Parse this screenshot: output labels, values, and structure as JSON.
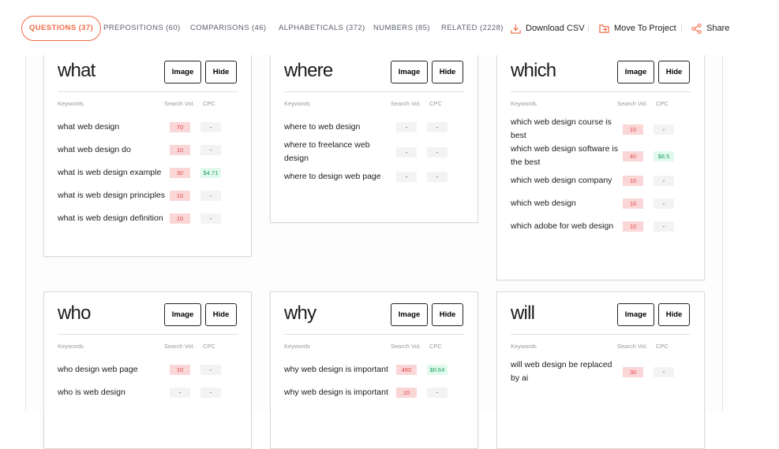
{
  "tabs": [
    {
      "label": "QUESTIONS (37)",
      "active": true
    },
    {
      "label": "PREPOSITIONS (60)"
    },
    {
      "label": "COMPARISONS (46)"
    },
    {
      "label": "ALPHABETICALS (372)"
    },
    {
      "label": "NUMBERS (85)"
    },
    {
      "label": "RELATED (2228)"
    }
  ],
  "actions": {
    "download": "Download CSV",
    "move": "Move To Project",
    "share": "Share"
  },
  "accent": "#f26b45",
  "labels": {
    "image": "Image",
    "hide": "Hide",
    "keywords": "Keywords",
    "search_vol": "Search Vol.",
    "cpc": "CPC"
  },
  "cards": [
    {
      "title": "what",
      "rows": [
        {
          "kw": "what web design",
          "vol": "70",
          "cpc": "-"
        },
        {
          "kw": "what web design do",
          "vol": "10",
          "cpc": "-"
        },
        {
          "kw": "what is web design example",
          "vol": "30",
          "cpc": "$4.71"
        },
        {
          "kw": "what is web design principles",
          "vol": "10",
          "cpc": "-"
        },
        {
          "kw": "what is web design definition",
          "vol": "10",
          "cpc": "-"
        }
      ]
    },
    {
      "title": "where",
      "rows": [
        {
          "kw": "where to web design",
          "vol": "-",
          "cpc": "-"
        },
        {
          "kw": "where to freelance web design",
          "vol": "-",
          "cpc": "-"
        },
        {
          "kw": "where to design web page",
          "vol": "-",
          "cpc": "-"
        }
      ]
    },
    {
      "title": "which",
      "rows": [
        {
          "kw": "which web design course is best",
          "vol": "10",
          "cpc": "-"
        },
        {
          "kw": "which web design software is the best",
          "vol": "40",
          "cpc": "$8.5"
        },
        {
          "kw": "which web design company",
          "vol": "10",
          "cpc": "-"
        },
        {
          "kw": "which web design",
          "vol": "10",
          "cpc": "-"
        },
        {
          "kw": "which adobe for web design",
          "vol": "10",
          "cpc": "-"
        }
      ]
    },
    {
      "title": "who",
      "rows": [
        {
          "kw": "who design web page",
          "vol": "10",
          "cpc": "-"
        },
        {
          "kw": "who is web design",
          "vol": "-",
          "cpc": "-"
        }
      ]
    },
    {
      "title": "why",
      "rows": [
        {
          "kw": "why web design is important",
          "vol": "480",
          "cpc": "$0.64"
        },
        {
          "kw": "why web design is important",
          "vol": "10",
          "cpc": "-"
        }
      ]
    },
    {
      "title": "will",
      "rows": [
        {
          "kw": "will web design be replaced by ai",
          "vol": "30",
          "cpc": "-"
        }
      ]
    }
  ]
}
